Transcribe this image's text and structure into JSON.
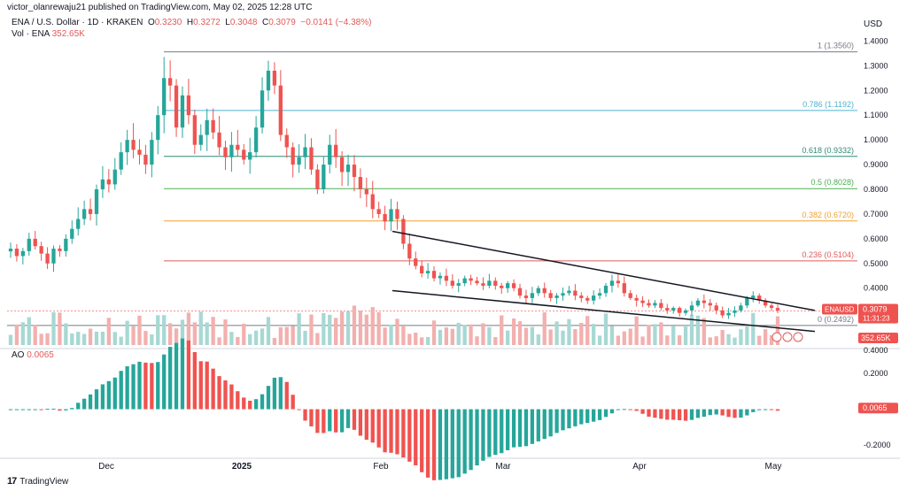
{
  "header": {
    "published": "victor_olanrewaju21 published on TradingView.com, May 02, 2025 12:28 UTC",
    "symbol": "ENA / U.S. Dollar · 1D · KRAKEN",
    "o_label": "O",
    "o": "0.3230",
    "h_label": "H",
    "h": "0.3272",
    "l_label": "L",
    "l": "0.3048",
    "c_label": "C",
    "c": "0.3079",
    "change": "−0.0141 (−4.38%)",
    "vol_label": "Vol · ENA",
    "vol": "352.65K",
    "ao_label": "AO",
    "ao": "0.0065"
  },
  "brand": "TradingView",
  "colors": {
    "up": "#26a69a",
    "down": "#ef5350",
    "vol_up": "#a8d8d3",
    "vol_down": "#f2b0ae",
    "line": "#131722"
  },
  "chart_data": [
    {
      "type": "candlestick",
      "title": "ENA / U.S. Dollar · 1D · KRAKEN",
      "y_axis_label": "USD",
      "y_ticks": [
        "1.4000",
        "1.3000",
        "1.2000",
        "1.1000",
        "1.0000",
        "0.9000",
        "0.8000",
        "0.7000",
        "0.6000",
        "0.5000",
        "0.4000",
        "0.3000",
        "0.2000"
      ],
      "x_ticks": [
        "Dec",
        "2025",
        "Feb",
        "Mar",
        "Apr",
        "May"
      ],
      "ylim": [
        0.17,
        1.43
      ],
      "close_series": [
        0.56,
        0.53,
        0.55,
        0.6,
        0.57,
        0.54,
        0.5,
        0.56,
        0.55,
        0.6,
        0.64,
        0.68,
        0.72,
        0.7,
        0.8,
        0.84,
        0.82,
        0.88,
        0.95,
        1.0,
        0.96,
        0.94,
        0.9,
        1.0,
        1.1,
        1.25,
        1.22,
        1.05,
        1.18,
        1.1,
        0.98,
        1.02,
        1.08,
        1.03,
        0.97,
        0.93,
        0.98,
        0.96,
        0.92,
        0.95,
        1.05,
        1.2,
        1.28,
        1.22,
        1.02,
        0.97,
        0.9,
        0.93,
        0.97,
        0.88,
        0.8,
        0.9,
        0.98,
        0.93,
        0.87,
        0.9,
        0.85,
        0.8,
        0.78,
        0.72,
        0.7,
        0.67,
        0.72,
        0.68,
        0.58,
        0.52,
        0.49,
        0.46,
        0.47,
        0.44,
        0.45,
        0.43,
        0.41,
        0.42,
        0.44,
        0.43,
        0.42,
        0.41,
        0.43,
        0.41,
        0.4,
        0.42,
        0.4,
        0.37,
        0.36,
        0.38,
        0.4,
        0.38,
        0.36,
        0.37,
        0.38,
        0.39,
        0.37,
        0.36,
        0.35,
        0.37,
        0.38,
        0.41,
        0.43,
        0.42,
        0.38,
        0.36,
        0.35,
        0.34,
        0.33,
        0.34,
        0.32,
        0.31,
        0.32,
        0.3,
        0.31,
        0.33,
        0.35,
        0.34,
        0.33,
        0.31,
        0.29,
        0.3,
        0.31,
        0.33,
        0.36,
        0.37,
        0.35,
        0.33,
        0.32,
        0.31
      ],
      "fibonacci": [
        {
          "label": "1 (1.3560)",
          "value": 1.356,
          "color": "#787b86"
        },
        {
          "label": "0.786 (1.1192)",
          "value": 1.1192,
          "color": "#4fb3d1"
        },
        {
          "label": "0.618 (0.9332)",
          "value": 0.9332,
          "color": "#2e8b72"
        },
        {
          "label": "0.5 (0.8028)",
          "value": 0.8028,
          "color": "#4caf50"
        },
        {
          "label": "0.382 (0.6720)",
          "value": 0.672,
          "color": "#f0a030"
        },
        {
          "label": "0.236 (0.5104)",
          "value": 0.5104,
          "color": "#e05a5a"
        },
        {
          "label": "0 (0.2492)",
          "value": 0.2492,
          "color": "#787b86"
        }
      ],
      "trendlines": [
        {
          "name": "upper",
          "from": {
            "x": "Feb",
            "y": 0.63
          },
          "to": {
            "x": "May",
            "y": 0.31
          }
        },
        {
          "name": "lower",
          "from": {
            "x": "Feb",
            "y": 0.39
          },
          "to": {
            "x": "May",
            "y": 0.225
          }
        }
      ],
      "price_label": {
        "symbol": "ENAUSD",
        "price": "0.3079",
        "countdown": "11:31:23"
      },
      "volume_label": "352.65K"
    },
    {
      "type": "bar",
      "title": "AO",
      "y_ticks": [
        "0.4000",
        "0.2000",
        "0.0000",
        "-0.2000"
      ],
      "ylim": [
        -0.26,
        0.32
      ],
      "current_value": "0.0065"
    }
  ]
}
